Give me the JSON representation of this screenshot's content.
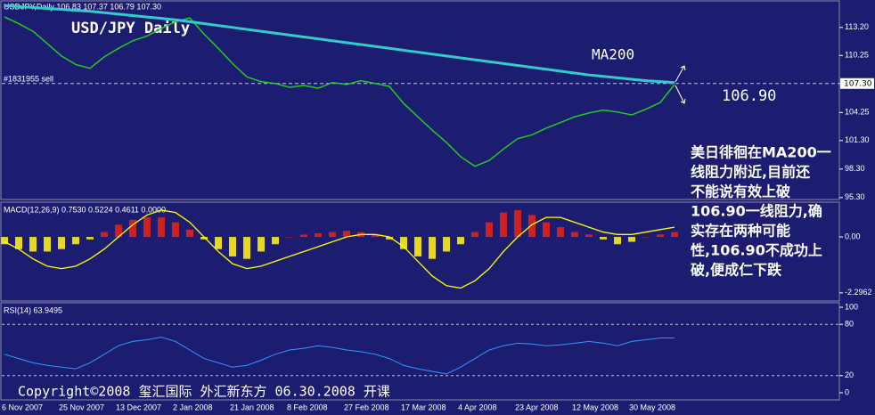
{
  "chart_data": [
    {
      "type": "line",
      "header": "USDJPY,Daily  106.83 107.37 106.79 107.30",
      "title": "USD/JPY Daily",
      "order_label": "#1831955 sell",
      "ylim": [
        95.1,
        115.9
      ],
      "yticks": [
        {
          "value": 95.3,
          "label": "95.30"
        },
        {
          "value": 98.3,
          "label": "98.30"
        },
        {
          "value": 101.3,
          "label": "101.30"
        },
        {
          "value": 104.25,
          "label": "104.25"
        },
        {
          "value": 107.3,
          "label": "107.30"
        },
        {
          "value": 110.25,
          "label": "110.25"
        },
        {
          "value": 113.2,
          "label": "113.20"
        }
      ],
      "price_line": {
        "value": 107.3,
        "label": "107.30"
      },
      "series": [
        {
          "color": "#22cc22",
          "values": [
            114.3,
            113.6,
            112.8,
            111.5,
            110.2,
            109.3,
            108.9,
            110.1,
            111.0,
            111.8,
            112.3,
            113.1,
            113.8,
            114.2,
            112.5,
            111.0,
            109.4,
            108.0,
            107.5,
            107.3,
            106.9,
            107.1,
            106.8,
            107.4,
            107.2,
            107.6,
            107.3,
            107.0,
            105.2,
            103.8,
            102.4,
            101.1,
            99.6,
            98.6,
            99.2,
            100.4,
            101.5,
            101.9,
            102.6,
            103.2,
            103.8,
            104.2,
            104.5,
            104.3,
            104.0,
            104.6,
            105.3,
            107.2
          ]
        },
        {
          "name": "MA200",
          "color": "#33cccc",
          "values": [
            115.5,
            115.4,
            115.3,
            115.2,
            115.1,
            115.0,
            114.9,
            114.75,
            114.6,
            114.45,
            114.3,
            114.15,
            114.0,
            113.8,
            113.6,
            113.4,
            113.2,
            113.0,
            112.8,
            112.6,
            112.4,
            112.2,
            112.0,
            111.8,
            111.6,
            111.4,
            111.2,
            111.0,
            110.8,
            110.6,
            110.4,
            110.2,
            110.0,
            109.8,
            109.6,
            109.4,
            109.2,
            109.0,
            108.8,
            108.6,
            108.4,
            108.2,
            108.05,
            107.9,
            107.75,
            107.6,
            107.5,
            107.4
          ]
        }
      ],
      "level_label": "106.90",
      "note_lines": [
        "美日徘徊在MA200一",
        "线阻力附近,目前还",
        "不能说有效上破",
        "106.90一线阻力,确",
        "实存在两种可能",
        "性,106.90不成功上",
        "破,便成仁下跌"
      ],
      "copyright": "Copyright©2008 玺汇国际 外汇新东方 06.30.2008 开课",
      "x_labels": [
        "6 Nov 2007",
        "25 Nov 2007",
        "13 Dec 2007",
        "2 Jan 2008",
        "21 Jan 2008",
        "8 Feb 2008",
        "27 Feb 2008",
        "17 Mar 2008",
        "4 Apr 2008",
        "23 Apr 2008",
        "12 May 2008",
        "30 May 2008"
      ]
    },
    {
      "type": "macd",
      "header": "MACD(12,26,9) 0.7530 0.5224 0.4611 0.0000",
      "ylim": [
        -2.63,
        1.39
      ],
      "yticks": [
        {
          "value": 0,
          "label": "0.00"
        },
        -2.2962
      ],
      "histogram": {
        "color_up": "#cc2222",
        "color_down": "#e8d820",
        "values": [
          -0.3,
          -0.5,
          -0.6,
          -0.6,
          -0.5,
          -0.3,
          -0.1,
          0.2,
          0.5,
          0.7,
          0.8,
          0.8,
          0.6,
          0.3,
          -0.1,
          -0.5,
          -0.8,
          -0.9,
          -0.6,
          -0.3,
          0.0,
          0.1,
          0.15,
          0.2,
          0.25,
          0.2,
          0.1,
          -0.1,
          -0.5,
          -0.8,
          -0.9,
          -0.6,
          -0.3,
          0.2,
          0.6,
          1.0,
          1.1,
          0.9,
          0.6,
          0.4,
          0.2,
          0.1,
          -0.1,
          -0.3,
          -0.2,
          0.0,
          0.1,
          0.2
        ]
      },
      "signal": {
        "color": "#ffff00",
        "values": [
          -0.2,
          -0.5,
          -0.9,
          -1.2,
          -1.3,
          -1.2,
          -0.9,
          -0.5,
          0.0,
          0.5,
          0.9,
          1.1,
          1.0,
          0.6,
          0.0,
          -0.6,
          -1.1,
          -1.3,
          -1.2,
          -1.0,
          -0.8,
          -0.6,
          -0.4,
          -0.2,
          0.0,
          0.1,
          0.1,
          0.0,
          -0.4,
          -1.0,
          -1.6,
          -2.0,
          -2.1,
          -1.8,
          -1.3,
          -0.6,
          0.0,
          0.5,
          0.8,
          0.8,
          0.6,
          0.4,
          0.2,
          0.1,
          0.1,
          0.2,
          0.3,
          0.4
        ]
      }
    },
    {
      "type": "rsi",
      "header": "RSI(14) 63.9495",
      "ylim": [
        0,
        100
      ],
      "yticks": [
        0,
        20,
        80,
        100
      ],
      "levels": [
        20,
        80
      ],
      "series": [
        {
          "color": "#3399ff",
          "values": [
            45,
            40,
            35,
            32,
            30,
            28,
            35,
            45,
            55,
            60,
            62,
            65,
            60,
            50,
            40,
            35,
            30,
            32,
            38,
            45,
            50,
            52,
            55,
            53,
            50,
            48,
            45,
            40,
            32,
            28,
            25,
            22,
            30,
            40,
            50,
            55,
            58,
            57,
            55,
            56,
            58,
            60,
            58,
            55,
            60,
            62,
            64,
            64
          ]
        }
      ]
    }
  ]
}
